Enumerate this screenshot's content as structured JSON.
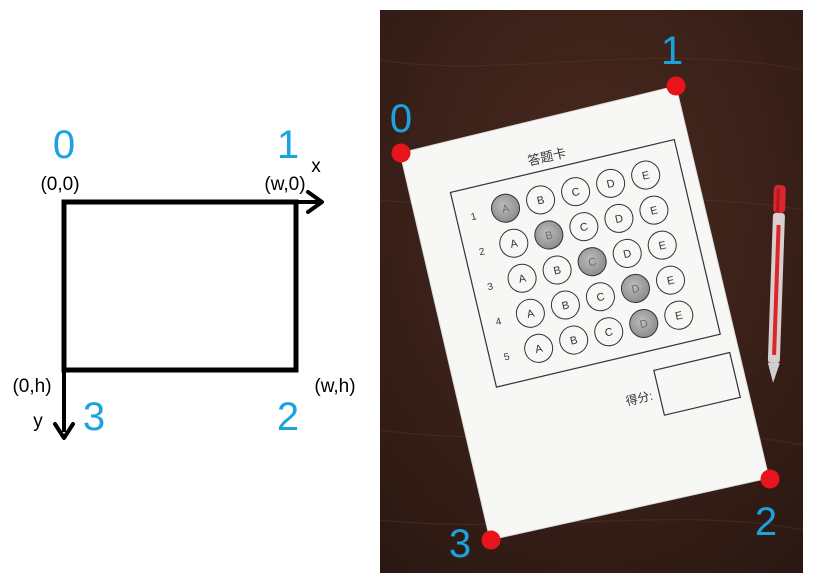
{
  "colors": {
    "accent_blue": "#1aa3e0",
    "corner_red": "#e8141c",
    "desk": "#3b2119",
    "paper": "#f7f7f5",
    "shade": "#9a9a9a"
  },
  "diagram": {
    "corner_numbers": [
      "0",
      "1",
      "2",
      "3"
    ],
    "coord_labels": [
      "(0,0)",
      "(w,0)",
      "(w,h)",
      "(0,h)"
    ],
    "axis_x": "x",
    "axis_y": "y"
  },
  "photo": {
    "corner_numbers": [
      "0",
      "1",
      "2",
      "3"
    ],
    "sheet": {
      "title": "答题卡",
      "row_numbers": [
        "1",
        "2",
        "3",
        "4",
        "5"
      ],
      "options": [
        "A",
        "B",
        "C",
        "D",
        "E"
      ],
      "filled_answers": [
        "A",
        "B",
        "C",
        "D",
        "D"
      ],
      "score_label": "得分:"
    },
    "pen_icon": "pen-icon"
  }
}
